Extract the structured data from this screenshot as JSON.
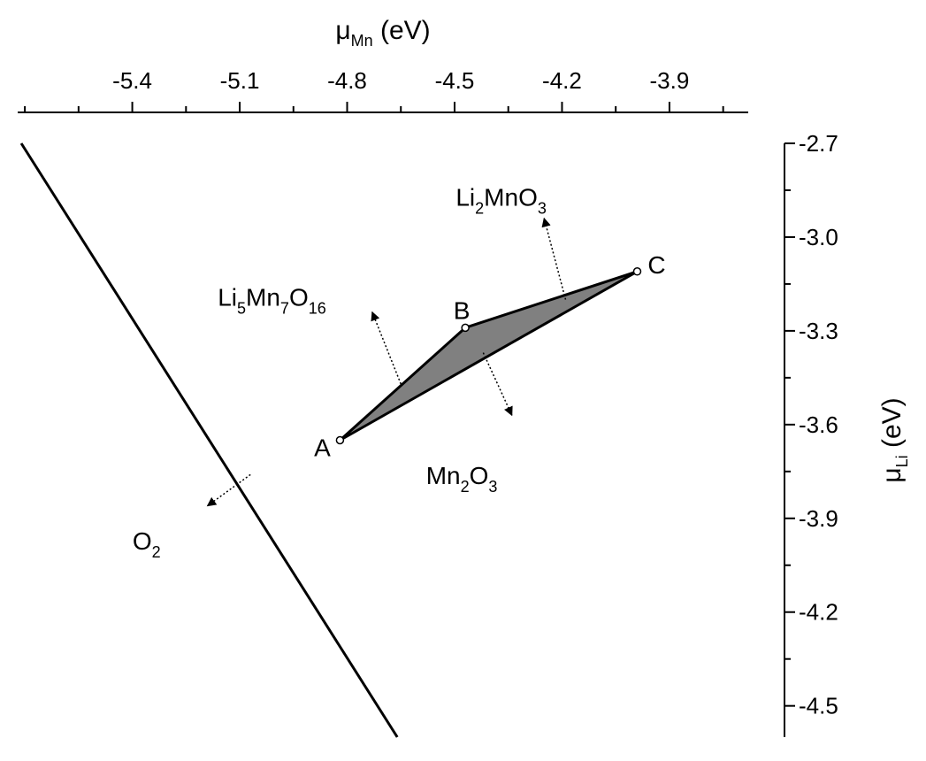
{
  "chart_data": {
    "type": "scatter",
    "x_axis": {
      "label_symbol": "μ",
      "label_sub": "Mn",
      "label_unit": " (eV)",
      "position": "top",
      "range": [
        -5.72,
        -3.68
      ],
      "ticks": [
        -5.4,
        -5.1,
        -4.8,
        -4.5,
        -4.2,
        -3.9
      ],
      "tick_labels": [
        "-5.4",
        "-5.1",
        "-4.8",
        "-4.5",
        "-4.2",
        "-3.9"
      ]
    },
    "y_axis": {
      "label_symbol": "μ",
      "label_sub": "Li",
      "label_unit": " (eV)",
      "position": "right",
      "range": [
        -4.6,
        -2.7
      ],
      "ticks": [
        -2.7,
        -3.0,
        -3.3,
        -3.6,
        -3.9,
        -4.2,
        -4.5
      ],
      "tick_labels": [
        "-2.7",
        "-3.0",
        "-3.3",
        "-3.6",
        "-3.9",
        "-4.2",
        "-4.5"
      ]
    },
    "grid": false,
    "region_vertices": [
      {
        "label": "A",
        "x": -4.82,
        "y": -3.65
      },
      {
        "label": "B",
        "x": -4.47,
        "y": -3.29
      },
      {
        "label": "C",
        "x": -3.99,
        "y": -3.11
      }
    ],
    "o2_boundary": {
      "x": [
        -5.71,
        -4.66
      ],
      "y": [
        -2.7,
        -4.6
      ]
    },
    "phase_labels": [
      {
        "parts": [
          {
            "t": "Li"
          },
          {
            "t": "2",
            "sub": true
          },
          {
            "t": "MnO"
          },
          {
            "t": "3",
            "sub": true
          }
        ],
        "x": -4.37,
        "y": -2.9
      },
      {
        "parts": [
          {
            "t": "Li"
          },
          {
            "t": "5",
            "sub": true
          },
          {
            "t": "Mn"
          },
          {
            "t": "7",
            "sub": true
          },
          {
            "t": "O"
          },
          {
            "t": "16",
            "sub": true
          }
        ],
        "x": -5.01,
        "y": -3.22
      },
      {
        "parts": [
          {
            "t": "Mn"
          },
          {
            "t": "2",
            "sub": true
          },
          {
            "t": "O"
          },
          {
            "t": "3",
            "sub": true
          }
        ],
        "x": -4.48,
        "y": -3.79
      },
      {
        "parts": [
          {
            "t": "O"
          },
          {
            "t": "2",
            "sub": true
          }
        ],
        "x": -5.36,
        "y": -4.0
      }
    ],
    "normal_arrows": [
      {
        "from": [
          -4.19,
          -3.2
        ],
        "to": [
          -4.25,
          -2.94
        ]
      },
      {
        "from": [
          -4.65,
          -3.47
        ],
        "to": [
          -4.73,
          -3.24
        ]
      },
      {
        "from": [
          -4.42,
          -3.37
        ],
        "to": [
          -4.34,
          -3.57
        ]
      },
      {
        "from": [
          -5.07,
          -3.76
        ],
        "to": [
          -5.19,
          -3.86
        ]
      }
    ]
  }
}
